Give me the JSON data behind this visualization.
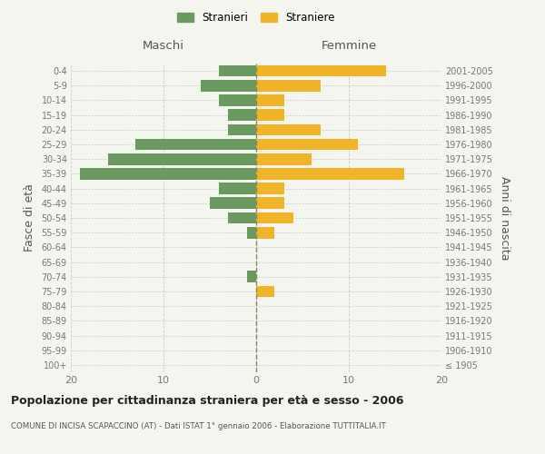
{
  "age_groups": [
    "100+",
    "95-99",
    "90-94",
    "85-89",
    "80-84",
    "75-79",
    "70-74",
    "65-69",
    "60-64",
    "55-59",
    "50-54",
    "45-49",
    "40-44",
    "35-39",
    "30-34",
    "25-29",
    "20-24",
    "15-19",
    "10-14",
    "5-9",
    "0-4"
  ],
  "birth_years": [
    "≤ 1905",
    "1906-1910",
    "1911-1915",
    "1916-1920",
    "1921-1925",
    "1926-1930",
    "1931-1935",
    "1936-1940",
    "1941-1945",
    "1946-1950",
    "1951-1955",
    "1956-1960",
    "1961-1965",
    "1966-1970",
    "1971-1975",
    "1976-1980",
    "1981-1985",
    "1986-1990",
    "1991-1995",
    "1996-2000",
    "2001-2005"
  ],
  "maschi": [
    0,
    0,
    0,
    0,
    0,
    0,
    1,
    0,
    0,
    1,
    3,
    5,
    4,
    19,
    16,
    13,
    3,
    3,
    4,
    6,
    4
  ],
  "femmine": [
    0,
    0,
    0,
    0,
    0,
    2,
    0,
    0,
    0,
    2,
    4,
    3,
    3,
    16,
    6,
    11,
    7,
    3,
    3,
    7,
    14
  ],
  "male_color": "#6a9a5f",
  "female_color": "#f0b429",
  "background_color": "#f5f5f0",
  "grid_color": "#cccccc",
  "title": "Popolazione per cittadinanza straniera per età e sesso - 2006",
  "subtitle": "COMUNE DI INCISA SCAPACCINO (AT) - Dati ISTAT 1° gennaio 2006 - Elaborazione TUTTITALIA.IT",
  "ylabel_left": "Fasce di età",
  "ylabel_right": "Anni di nascita",
  "xlabel_left": "Maschi",
  "xlabel_right": "Femmine",
  "legend_stranieri": "Stranieri",
  "legend_straniere": "Straniere",
  "xlim": 20
}
